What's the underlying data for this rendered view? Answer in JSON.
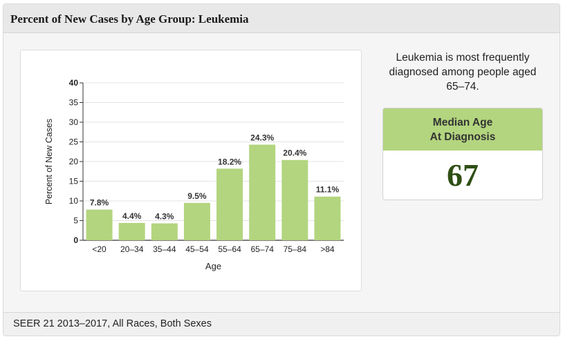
{
  "header": {
    "title": "Percent of New Cases by Age Group: Leukemia"
  },
  "summary": {
    "text": "Leukemia is most frequently diagnosed among people aged 65–74."
  },
  "median": {
    "heading_line1": "Median Age",
    "heading_line2": "At Diagnosis",
    "value": "67"
  },
  "footer": {
    "source": "SEER 21 2013–2017, All Races, Both Sexes"
  },
  "colors": {
    "bar": "#b3d57f",
    "median_value": "#2f4f14"
  },
  "chart_data": {
    "type": "bar",
    "title": "",
    "xlabel": "Age",
    "ylabel": "Percent of New Cases",
    "ylim": [
      0,
      40
    ],
    "yticks": [
      0,
      5,
      10,
      15,
      20,
      25,
      30,
      35,
      40
    ],
    "grid": true,
    "categories": [
      "<20",
      "20–34",
      "35–44",
      "45–54",
      "55–64",
      "65–74",
      "75–84",
      ">84"
    ],
    "values": [
      7.8,
      4.4,
      4.3,
      9.5,
      18.2,
      24.3,
      20.4,
      11.1
    ],
    "data_labels": [
      "7.8%",
      "4.4%",
      "4.3%",
      "9.5%",
      "18.2%",
      "24.3%",
      "20.4%",
      "11.1%"
    ]
  }
}
